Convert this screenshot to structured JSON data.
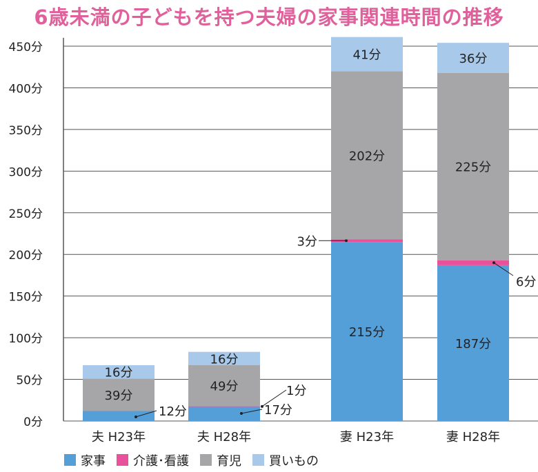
{
  "chart_data": {
    "type": "bar",
    "stacked": true,
    "title": "6歳未満の子どもを持つ夫婦の家事関連時間の推移",
    "categories": [
      "夫 H23年",
      "夫 H28年",
      "妻 H23年",
      "妻 H28年"
    ],
    "series": [
      {
        "name": "家事",
        "color": "#559fd9",
        "values": [
          12,
          17,
          215,
          187
        ],
        "labels": [
          "12分",
          "17分",
          "215分",
          "187分"
        ]
      },
      {
        "name": "介護･看護",
        "color": "#e8529a",
        "values": [
          0,
          1,
          3,
          6
        ],
        "labels": [
          "",
          "1分",
          "3分",
          "6分"
        ]
      },
      {
        "name": "育児",
        "color": "#a6a6a8",
        "values": [
          39,
          49,
          202,
          225
        ],
        "labels": [
          "39分",
          "49分",
          "202分",
          "225分"
        ]
      },
      {
        "name": "買いもの",
        "color": "#a8c9ea",
        "values": [
          16,
          16,
          41,
          36
        ],
        "labels": [
          "16分",
          "16分",
          "41分",
          "36分"
        ]
      }
    ],
    "yticks": [
      "0分",
      "50分",
      "100分",
      "150分",
      "200分",
      "250分",
      "300分",
      "350分",
      "400分",
      "450分"
    ],
    "ylim": [
      0,
      450
    ],
    "grid": true,
    "legend": "bottom-left"
  }
}
